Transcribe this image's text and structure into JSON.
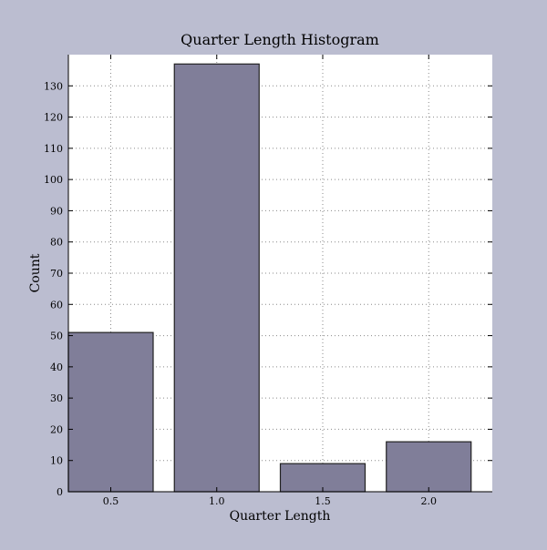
{
  "colors": {
    "page_background": "#bbbdd0",
    "plot_background": "#ffffff",
    "bar_fill": "#807e99",
    "bar_edge": "#222222",
    "grid": "#8a8a8a",
    "axis": "#000000"
  },
  "chart_data": {
    "type": "bar",
    "title": "Quarter Length Histogram",
    "xlabel": "Quarter Length",
    "ylabel": "Count",
    "categories": [
      0.5,
      1.0,
      1.5,
      2.0
    ],
    "values": [
      51,
      137,
      9,
      16
    ],
    "bar_width": 0.4,
    "xlim": [
      0.3,
      2.3
    ],
    "ylim": [
      0,
      140
    ],
    "xticks": [
      0.5,
      1.0,
      1.5,
      2.0
    ],
    "xtick_labels": [
      "0.5",
      "1.0",
      "1.5",
      "2.0"
    ],
    "yticks": [
      0,
      10,
      20,
      30,
      40,
      50,
      60,
      70,
      80,
      90,
      100,
      110,
      120,
      130
    ],
    "ytick_labels": [
      "0",
      "10",
      "20",
      "30",
      "40",
      "50",
      "60",
      "70",
      "80",
      "90",
      "100",
      "110",
      "120",
      "130"
    ],
    "grid": true,
    "grid_style": "dotted",
    "legend": false
  }
}
